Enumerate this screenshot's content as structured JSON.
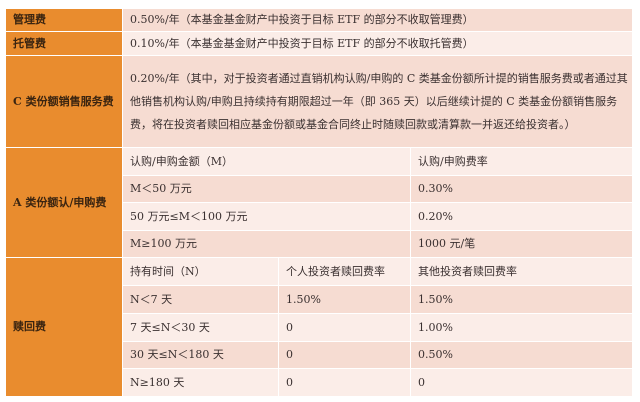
{
  "rows": {
    "management": {
      "label": "管理费",
      "value": "0.50%/年（本基金基金财产中投资于目标 ETF 的部分不收取管理费）"
    },
    "custody": {
      "label": "托管费",
      "value": "0.10%/年（本基金基金财产中投资于目标 ETF 的部分不收取托管费）"
    },
    "c_service": {
      "label": "C 类份额销售服务费",
      "value": "0.20%/年（其中，对于投资者通过直销机构认购/申购的 C 类基金份额所计提的销售服务费或者通过其他销售机构认购/申购且持续持有期限超过一年（即 365 天）以后继续计提的 C 类基金份额销售服务费，将在投资者赎回相应基金份额或基金合同终止时随赎回款或清算款一并返还给投资者。）"
    },
    "a_subscription": {
      "label": "A 类份额认/申购费",
      "headers": [
        "认购/申购金额（M）",
        "认购/申购费率"
      ],
      "items": [
        {
          "amount": "M＜50 万元",
          "rate": "0.30%"
        },
        {
          "amount": "50 万元≤M＜100 万元",
          "rate": "0.20%"
        },
        {
          "amount": "M≥100 万元",
          "rate": "1000 元/笔"
        }
      ]
    },
    "redemption": {
      "label": "赎回费",
      "headers": [
        "持有时间（N）",
        "个人投资者赎回费率",
        "其他投资者赎回费率"
      ],
      "items": [
        {
          "period": "N＜7 天",
          "individual": "1.50%",
          "other": "1.50%"
        },
        {
          "period": "7 天≤N＜30 天",
          "individual": "0",
          "other": "1.00%"
        },
        {
          "period": "30 天≤N＜180 天",
          "individual": "0",
          "other": "0.50%"
        },
        {
          "period": "N≥180 天",
          "individual": "0",
          "other": "0"
        }
      ]
    }
  },
  "colors": {
    "category": "#E98C2E",
    "row_pink": "#F6DCD2",
    "row_light": "#FBEDE8"
  }
}
